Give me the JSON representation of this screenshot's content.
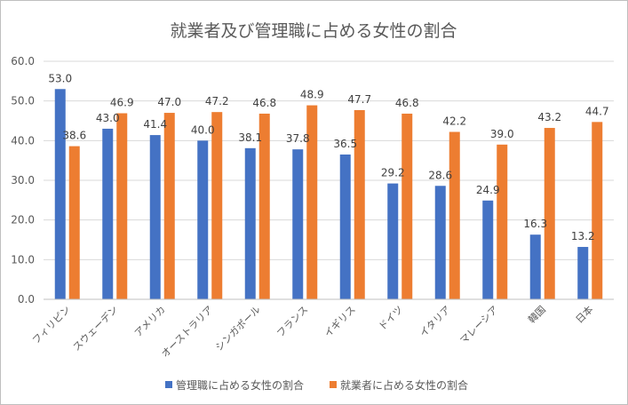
{
  "chart_data": {
    "type": "bar",
    "title": "就業者及び管理職に占める女性の割合",
    "categories": [
      "フィリピン",
      "スウェーデン",
      "アメリカ",
      "オーストラリア",
      "シンガポール",
      "フランス",
      "イギリス",
      "ドイツ",
      "イタリア",
      "マレーシア",
      "韓国",
      "日本"
    ],
    "series": [
      {
        "name": "管理職に占める女性の割合",
        "color": "#4472C4",
        "values": [
          53.0,
          43.0,
          41.4,
          40.0,
          38.1,
          37.8,
          36.5,
          29.2,
          28.6,
          24.9,
          16.3,
          13.2
        ]
      },
      {
        "name": "就業者に占める女性の割合",
        "color": "#ED7D31",
        "values": [
          38.6,
          46.9,
          47.0,
          47.2,
          46.8,
          48.9,
          47.7,
          46.8,
          42.2,
          39.0,
          43.2,
          44.7
        ]
      }
    ],
    "ylim": [
      0,
      60
    ],
    "yticks": [
      "0.0",
      "10.0",
      "20.0",
      "30.0",
      "40.0",
      "50.0",
      "60.0"
    ],
    "grid": true,
    "legend_position": "bottom"
  }
}
